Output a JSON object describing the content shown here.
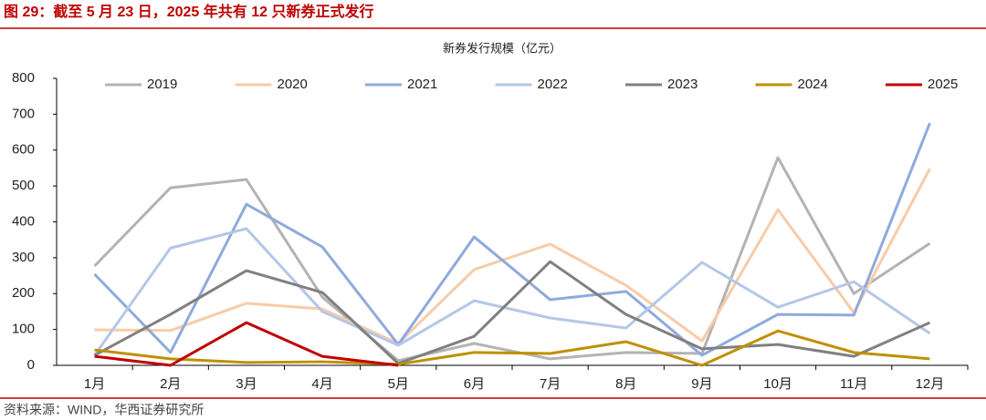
{
  "chart_data": {
    "type": "line",
    "title": "图 29：截至 5 月 23 日，2025 年共有 12 只新券正式发行",
    "subtitle": "新券发行规模（亿元）",
    "source": "资料来源：WIND，华西证券研究所",
    "categories": [
      "1月",
      "2月",
      "3月",
      "4月",
      "5月",
      "6月",
      "7月",
      "8月",
      "9月",
      "10月",
      "11月",
      "12月"
    ],
    "ylim": [
      0,
      800
    ],
    "yticks": [
      0,
      100,
      200,
      300,
      400,
      500,
      600,
      700,
      800
    ],
    "grid": false,
    "legend": "top",
    "series": [
      {
        "name": "2019",
        "color": "#b3b3b3",
        "values": [
          277,
          495,
          518,
          190,
          13,
          61,
          18,
          36,
          33,
          579,
          200,
          340
        ]
      },
      {
        "name": "2020",
        "color": "#f8cba8",
        "values": [
          99,
          97,
          173,
          157,
          61,
          267,
          338,
          223,
          68,
          434,
          147,
          548
        ]
      },
      {
        "name": "2021",
        "color": "#8faadc",
        "values": [
          254,
          36,
          449,
          330,
          58,
          358,
          183,
          206,
          28,
          142,
          140,
          675
        ]
      },
      {
        "name": "2022",
        "color": "#b4c7e7",
        "values": [
          28,
          327,
          381,
          150,
          56,
          180,
          132,
          104,
          287,
          162,
          233,
          89
        ]
      },
      {
        "name": "2023",
        "color": "#808080",
        "values": [
          28,
          142,
          264,
          203,
          5,
          81,
          289,
          142,
          46,
          58,
          25,
          119
        ]
      },
      {
        "name": "2024",
        "color": "#bf9000",
        "values": [
          43,
          18,
          8,
          10,
          3,
          36,
          33,
          66,
          0,
          96,
          36,
          18
        ]
      },
      {
        "name": "2025",
        "color": "#c00000",
        "values": [
          25,
          0,
          119,
          25,
          0,
          null,
          null,
          null,
          null,
          null,
          null,
          null
        ]
      }
    ]
  }
}
